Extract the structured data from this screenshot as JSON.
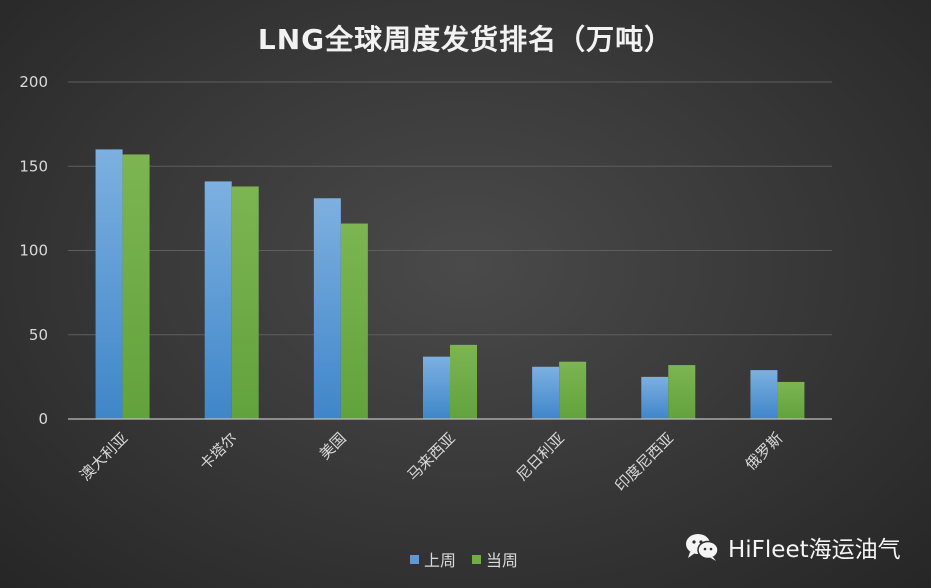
{
  "chart_data": {
    "type": "bar",
    "title": "LNG全球周度发货排名（万吨）",
    "categories": [
      "澳大利亚",
      "卡塔尔",
      "美国",
      "马来西亚",
      "尼日利亚",
      "印度尼西亚",
      "俄罗斯"
    ],
    "series": [
      {
        "name": "上周",
        "values": [
          160,
          141,
          131,
          37,
          31,
          25,
          29
        ]
      },
      {
        "name": "当周",
        "values": [
          157,
          138,
          116,
          44,
          34,
          32,
          22
        ]
      }
    ],
    "ylim": [
      0,
      200
    ],
    "yticks": [
      0,
      50,
      100,
      150,
      200
    ],
    "grid": true,
    "legend": "bottom"
  },
  "colors": {
    "series0": "#5b9bd5",
    "series1": "#70ad47"
  },
  "watermark": {
    "icon": "wechat-icon",
    "text": "HiFleet海运油气"
  }
}
